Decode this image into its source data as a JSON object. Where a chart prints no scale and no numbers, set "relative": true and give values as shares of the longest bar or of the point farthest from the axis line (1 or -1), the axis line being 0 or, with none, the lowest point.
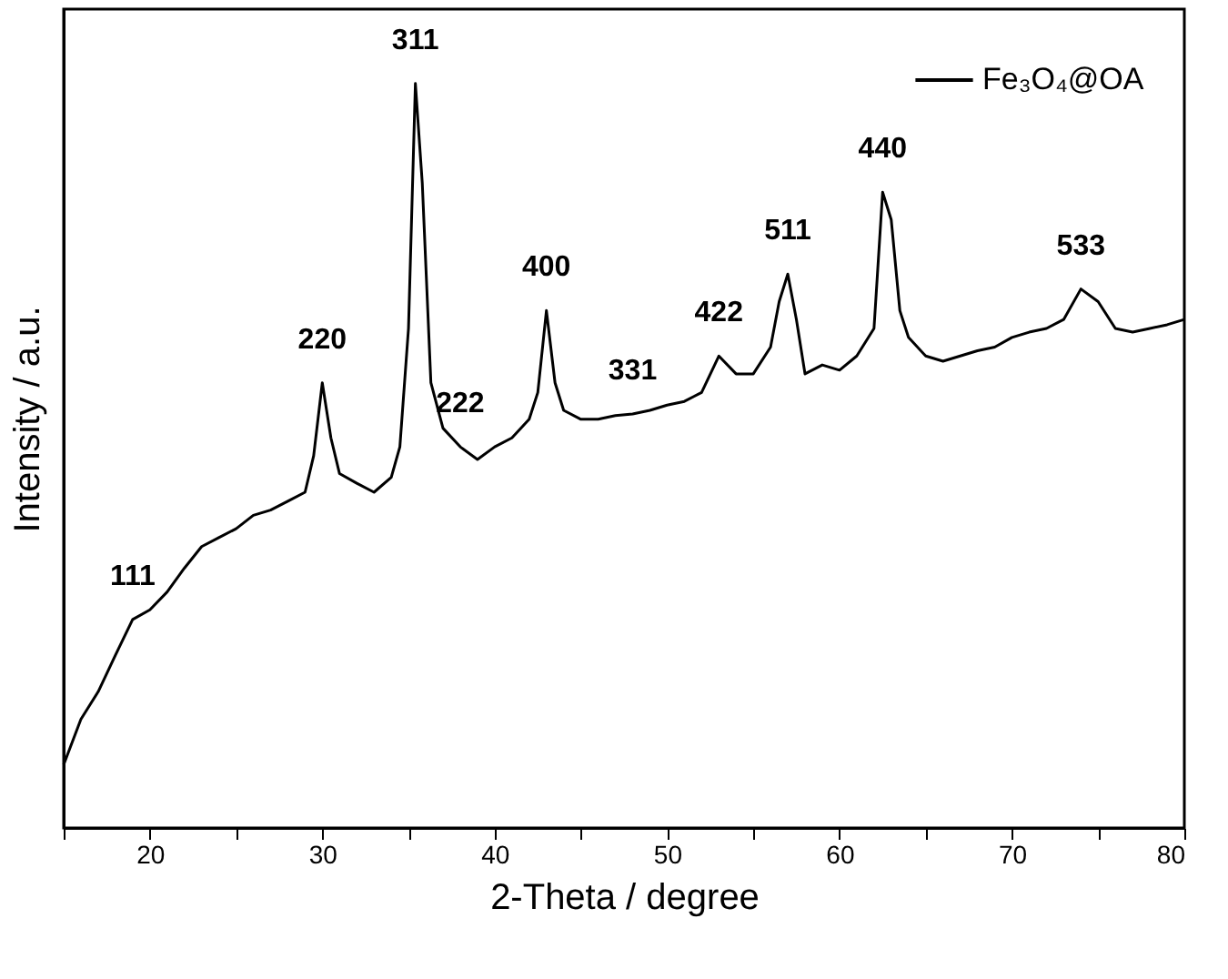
{
  "chart_data": {
    "type": "line",
    "relative": true,
    "xlabel": "2-Theta / degree",
    "ylabel": "Intensity / a.u.",
    "xlim": [
      15,
      80
    ],
    "xticks": [
      {
        "value": 15,
        "label": null
      },
      20,
      {
        "value": 25,
        "label": null
      },
      30,
      {
        "value": 35,
        "label": null
      },
      40,
      {
        "value": 45,
        "label": null
      },
      50,
      {
        "value": 55,
        "label": null
      },
      60,
      {
        "value": 65,
        "label": null
      },
      70,
      {
        "value": 75,
        "label": null
      },
      80
    ],
    "x": [
      15,
      16,
      17,
      18,
      19,
      20,
      21,
      22,
      23,
      24,
      25,
      26,
      27,
      28,
      29,
      29.5,
      30,
      30.5,
      31,
      32,
      33,
      34,
      34.5,
      35,
      35.4,
      35.8,
      36.3,
      37,
      38,
      39,
      40,
      41,
      42,
      42.5,
      43,
      43.5,
      44,
      45,
      46,
      47,
      48,
      49,
      50,
      51,
      52,
      53,
      54,
      55,
      56,
      56.5,
      57,
      57.5,
      58,
      59,
      60,
      61,
      62,
      62.5,
      63,
      63.5,
      64,
      65,
      66,
      67,
      68,
      69,
      70,
      71,
      72,
      73,
      74,
      75,
      76,
      77,
      78,
      79,
      80
    ],
    "series": [
      {
        "name": "Fe₃O₄@OA",
        "color": "#000000",
        "values": [
          0.085,
          0.146,
          0.183,
          0.232,
          0.28,
          0.293,
          0.317,
          0.349,
          0.378,
          0.39,
          0.402,
          0.42,
          0.427,
          0.439,
          0.451,
          0.5,
          0.598,
          0.524,
          0.476,
          0.463,
          0.451,
          0.471,
          0.512,
          0.671,
          1,
          0.866,
          0.598,
          0.537,
          0.512,
          0.495,
          0.512,
          0.524,
          0.549,
          0.585,
          0.695,
          0.598,
          0.561,
          0.549,
          0.549,
          0.554,
          0.556,
          0.561,
          0.568,
          0.573,
          0.585,
          0.634,
          0.61,
          0.61,
          0.646,
          0.707,
          0.744,
          0.683,
          0.61,
          0.622,
          0.615,
          0.634,
          0.671,
          0.854,
          0.817,
          0.695,
          0.659,
          0.634,
          0.627,
          0.634,
          0.641,
          0.646,
          0.659,
          0.666,
          0.671,
          0.683,
          0.724,
          0.707,
          0.671,
          0.666,
          0.671,
          0.676,
          0.683
        ]
      }
    ],
    "annotations": [
      {
        "text": "111",
        "x": 19,
        "y": 0.28
      },
      {
        "text": "220",
        "x": 30,
        "y": 0.598
      },
      {
        "text": "311",
        "x": 35.4,
        "y": 1
      },
      {
        "text": "222",
        "x": 38,
        "y": 0.512
      },
      {
        "text": "400",
        "x": 43,
        "y": 0.695
      },
      {
        "text": "331",
        "x": 48,
        "y": 0.556
      },
      {
        "text": "422",
        "x": 53,
        "y": 0.634
      },
      {
        "text": "511",
        "x": 57,
        "y": 0.744
      },
      {
        "text": "440",
        "x": 62.5,
        "y": 0.854
      },
      {
        "text": "533",
        "x": 74,
        "y": 0.724
      }
    ],
    "legend": "top right",
    "line_style": "solid",
    "marker": "none",
    "grid": false
  }
}
